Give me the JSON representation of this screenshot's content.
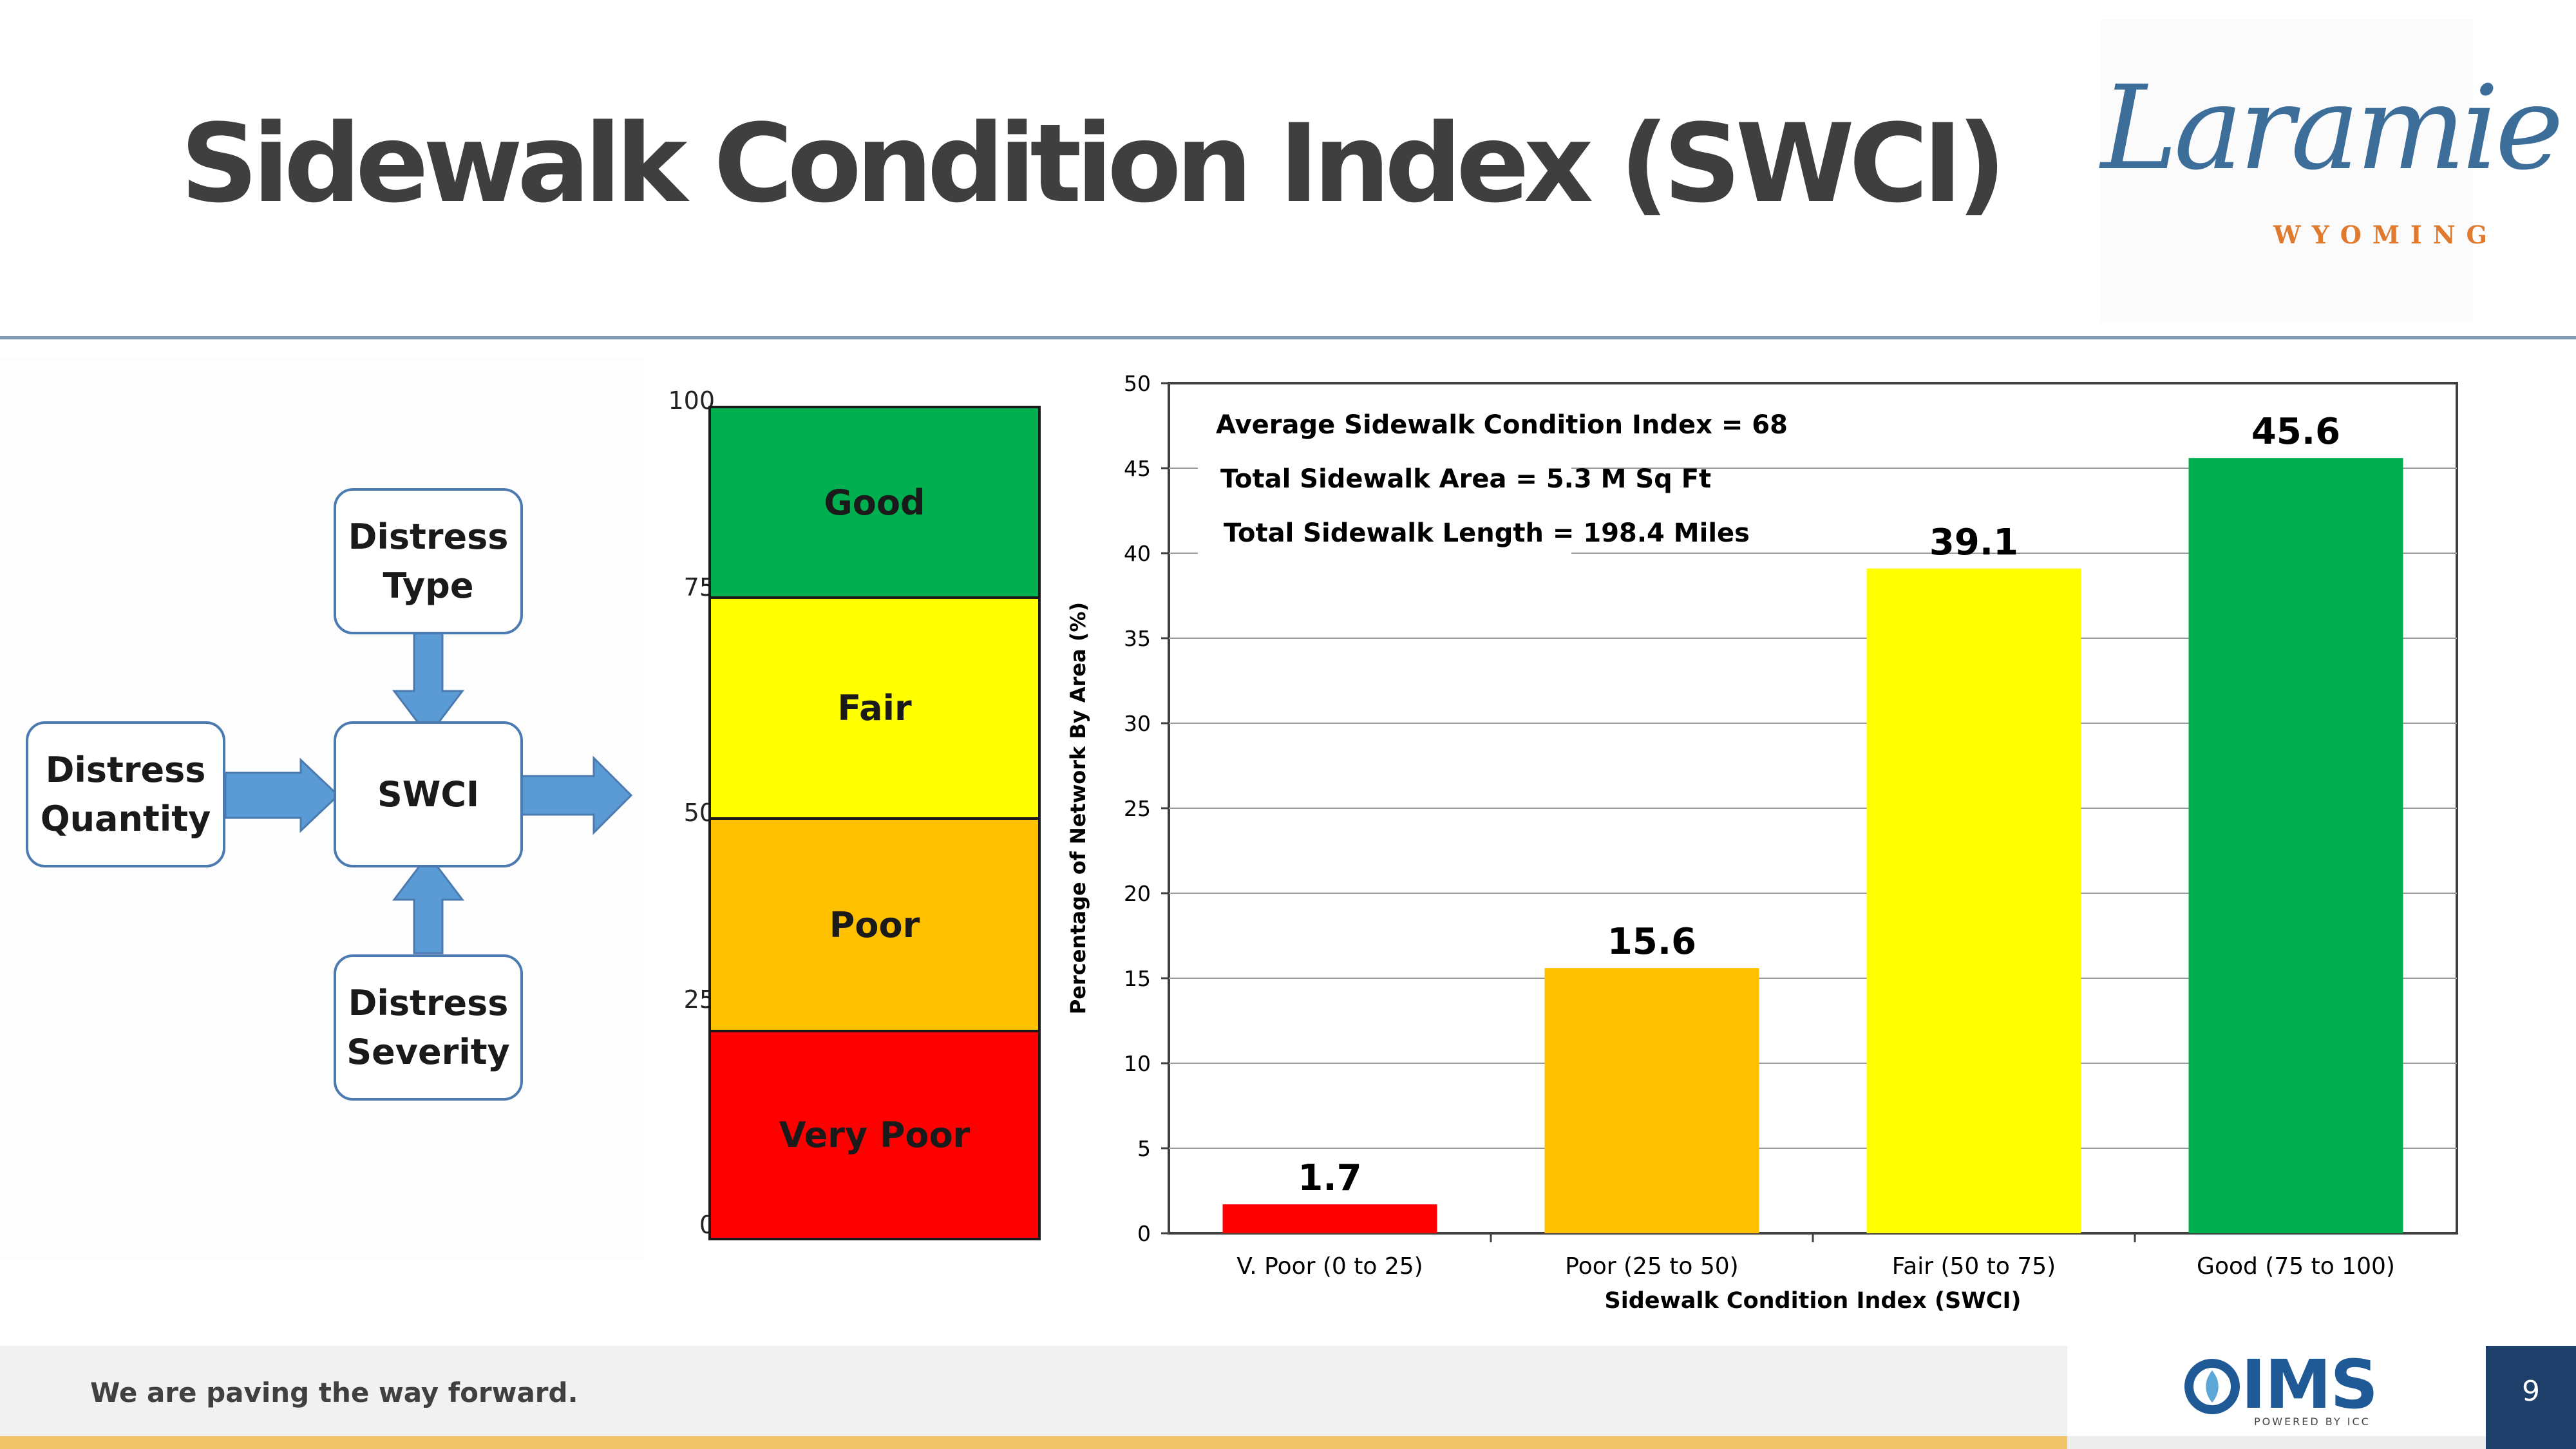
{
  "slide": {
    "title": "Sidewalk Condition Index (SWCI)",
    "page_number": "9"
  },
  "logo": {
    "script": "Laramie",
    "sub": "WYOMING"
  },
  "flow": {
    "distress_type": [
      "Distress",
      "Type"
    ],
    "distress_quantity": [
      "Distress",
      "Quantity"
    ],
    "center": "SWCI",
    "distress_severity": [
      "Distress",
      "Severity"
    ]
  },
  "scale": {
    "ticks": [
      "100",
      "75",
      "50",
      "25",
      "0"
    ],
    "bands": [
      {
        "label": "Good",
        "from": 75,
        "to": 100,
        "color": "#00b050"
      },
      {
        "label": "Fair",
        "from": 50,
        "to": 75,
        "color": "#ffff00"
      },
      {
        "label": "Poor",
        "from": 25,
        "to": 50,
        "color": "#ffc000"
      },
      {
        "label": "Very Poor",
        "from": 0,
        "to": 25,
        "color": "#ff0000"
      }
    ]
  },
  "chart_data": {
    "type": "bar",
    "categories": [
      "V. Poor (0 to 25)",
      "Poor (25 to 50)",
      "Fair (50 to 75)",
      "Good (75 to 100)"
    ],
    "values": [
      1.7,
      15.6,
      39.1,
      45.6
    ],
    "value_labels": [
      "1.7",
      "15.6",
      "39.1",
      "45.6"
    ],
    "colors": [
      "#ff0000",
      "#ffc000",
      "#ffff00",
      "#00b050"
    ],
    "xlabel": "Sidewalk Condition Index (SWCI)",
    "ylabel": "Percentage of Network By Area (%)",
    "ylim": [
      0,
      50
    ],
    "yticks": [
      0,
      5,
      10,
      15,
      20,
      25,
      30,
      35,
      40,
      45,
      50
    ],
    "grid": true,
    "annotations": [
      "Average Sidewalk Condition Index = 68",
      "Total Sidewalk Area = 5.3 M Sq Ft",
      "Total Sidewalk Length = 198.4 Miles"
    ]
  },
  "footer": {
    "tagline": "We are paving the way forward.",
    "brand": "IMS",
    "brand_sub": "POWERED BY ICC"
  }
}
